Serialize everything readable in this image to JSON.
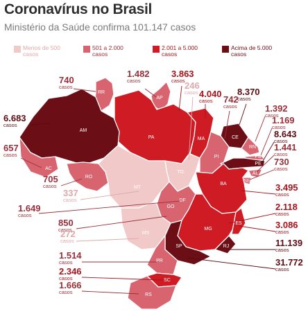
{
  "title": "Coronavírus no Brasil",
  "subtitle": "Ministério da Saúde confirma 101.147 casos",
  "case_word": "casos",
  "legend": [
    {
      "label": "Menos de 500 casos",
      "color": "#f2c9c9"
    },
    {
      "label": "501 a 2.000 casos",
      "color": "#d8646f"
    },
    {
      "label": "2.001 a 5.000 casos",
      "color": "#cf1b24"
    },
    {
      "label": "Acima de 5.000 casos",
      "color": "#6b0e16"
    }
  ],
  "states": [
    {
      "abbr": "RR",
      "cases": "740"
    },
    {
      "abbr": "AP",
      "cases": "1.482"
    },
    {
      "abbr": "PA",
      "cases": "3.863"
    },
    {
      "abbr": "MA",
      "cases": "4.040"
    },
    {
      "abbr": "CE",
      "cases": "8.370"
    },
    {
      "abbr": "AM",
      "cases": "6.683"
    },
    {
      "abbr": "TO",
      "cases": "246"
    },
    {
      "abbr": "PI",
      "cases": "742"
    },
    {
      "abbr": "RN",
      "cases": "1.392"
    },
    {
      "abbr": "PB",
      "cases": "1.169"
    },
    {
      "abbr": "PE",
      "cases": "8.643"
    },
    {
      "abbr": "AL",
      "cases": "1.441"
    },
    {
      "abbr": "SE",
      "cases": "730"
    },
    {
      "abbr": "AC",
      "cases": "657"
    },
    {
      "abbr": "RO",
      "cases": "705"
    },
    {
      "abbr": "BA",
      "cases": "3.495"
    },
    {
      "abbr": "MT",
      "cases": "337"
    },
    {
      "abbr": "DF",
      "cases": "1.649"
    },
    {
      "abbr": "GO",
      "cases": "850"
    },
    {
      "abbr": "MG",
      "cases": "2.118"
    },
    {
      "abbr": "ES",
      "cases": "3.086"
    },
    {
      "abbr": "MS",
      "cases": "272"
    },
    {
      "abbr": "RJ",
      "cases": "11.139"
    },
    {
      "abbr": "SP",
      "cases": "31.772"
    },
    {
      "abbr": "PR",
      "cases": "1.514"
    },
    {
      "abbr": "SC",
      "cases": "2.346"
    },
    {
      "abbr": "RS",
      "cases": "1.666"
    }
  ]
}
